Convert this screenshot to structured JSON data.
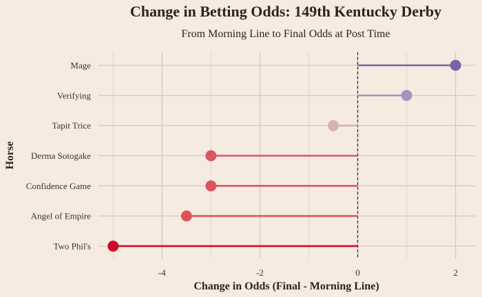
{
  "chart_data": {
    "type": "lollipop",
    "title": "Change in Betting Odds: 149th Kentucky Derby",
    "subtitle": "From Morning Line to Final Odds at Post Time",
    "xlabel": "Change in Odds (Final - Morning Line)",
    "ylabel": "Horse",
    "xlim": [
      -5.3,
      2.4
    ],
    "xticks": [
      -4,
      -2,
      0,
      2
    ],
    "xtick_labels": [
      "-4",
      "-2",
      "0",
      "2"
    ],
    "reference_line": 0,
    "grid": true,
    "categories": [
      "Mage",
      "Verifying",
      "Tapit Trice",
      "Derma Sotogake",
      "Confidence Game",
      "Angel of Empire",
      "Two Phil's"
    ],
    "values": [
      2,
      1,
      -0.5,
      -3,
      -3,
      -3.5,
      -5
    ],
    "colors": [
      "#7b62a6",
      "#a393be",
      "#d7b3b0",
      "#db5560",
      "#db5560",
      "#de5359",
      "#d10a2c"
    ]
  }
}
